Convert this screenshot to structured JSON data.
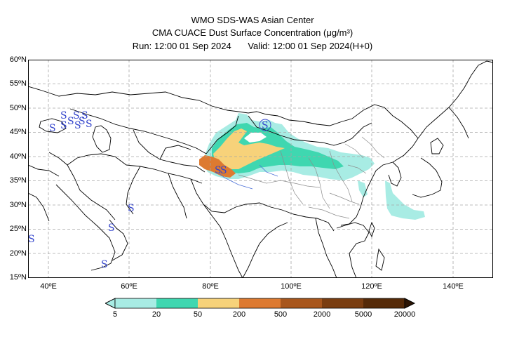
{
  "header": {
    "line1": "WMO SDS-WAS Asian Center",
    "line2": "CMA CUACE Dust Surface Concentration (μg/m³)",
    "run": "Run: 12:00 01 Sep 2024",
    "valid": "Valid: 12:00 01 Sep 2024(H+0)"
  },
  "axes": {
    "lat_labels": [
      "60ºN",
      "55ºN",
      "50ºN",
      "45ºN",
      "40ºN",
      "35ºN",
      "30ºN",
      "25ºN",
      "20ºN",
      "15ºN"
    ],
    "lon_labels": [
      "40ºE",
      "60ºE",
      "80ºE",
      "100ºE",
      "120ºE",
      "140ºE"
    ]
  },
  "colorbar": {
    "ticks": [
      "5",
      "20",
      "50",
      "200",
      "500",
      "2000",
      "5000",
      "20000"
    ],
    "colors": [
      "#a8ece4",
      "#3fd7b0",
      "#f7d27a",
      "#dd7a31",
      "#a8561c",
      "#7a3d10",
      "#552a08",
      "#2c1504"
    ]
  },
  "symbols": {
    "dust_symbol": "S"
  }
}
